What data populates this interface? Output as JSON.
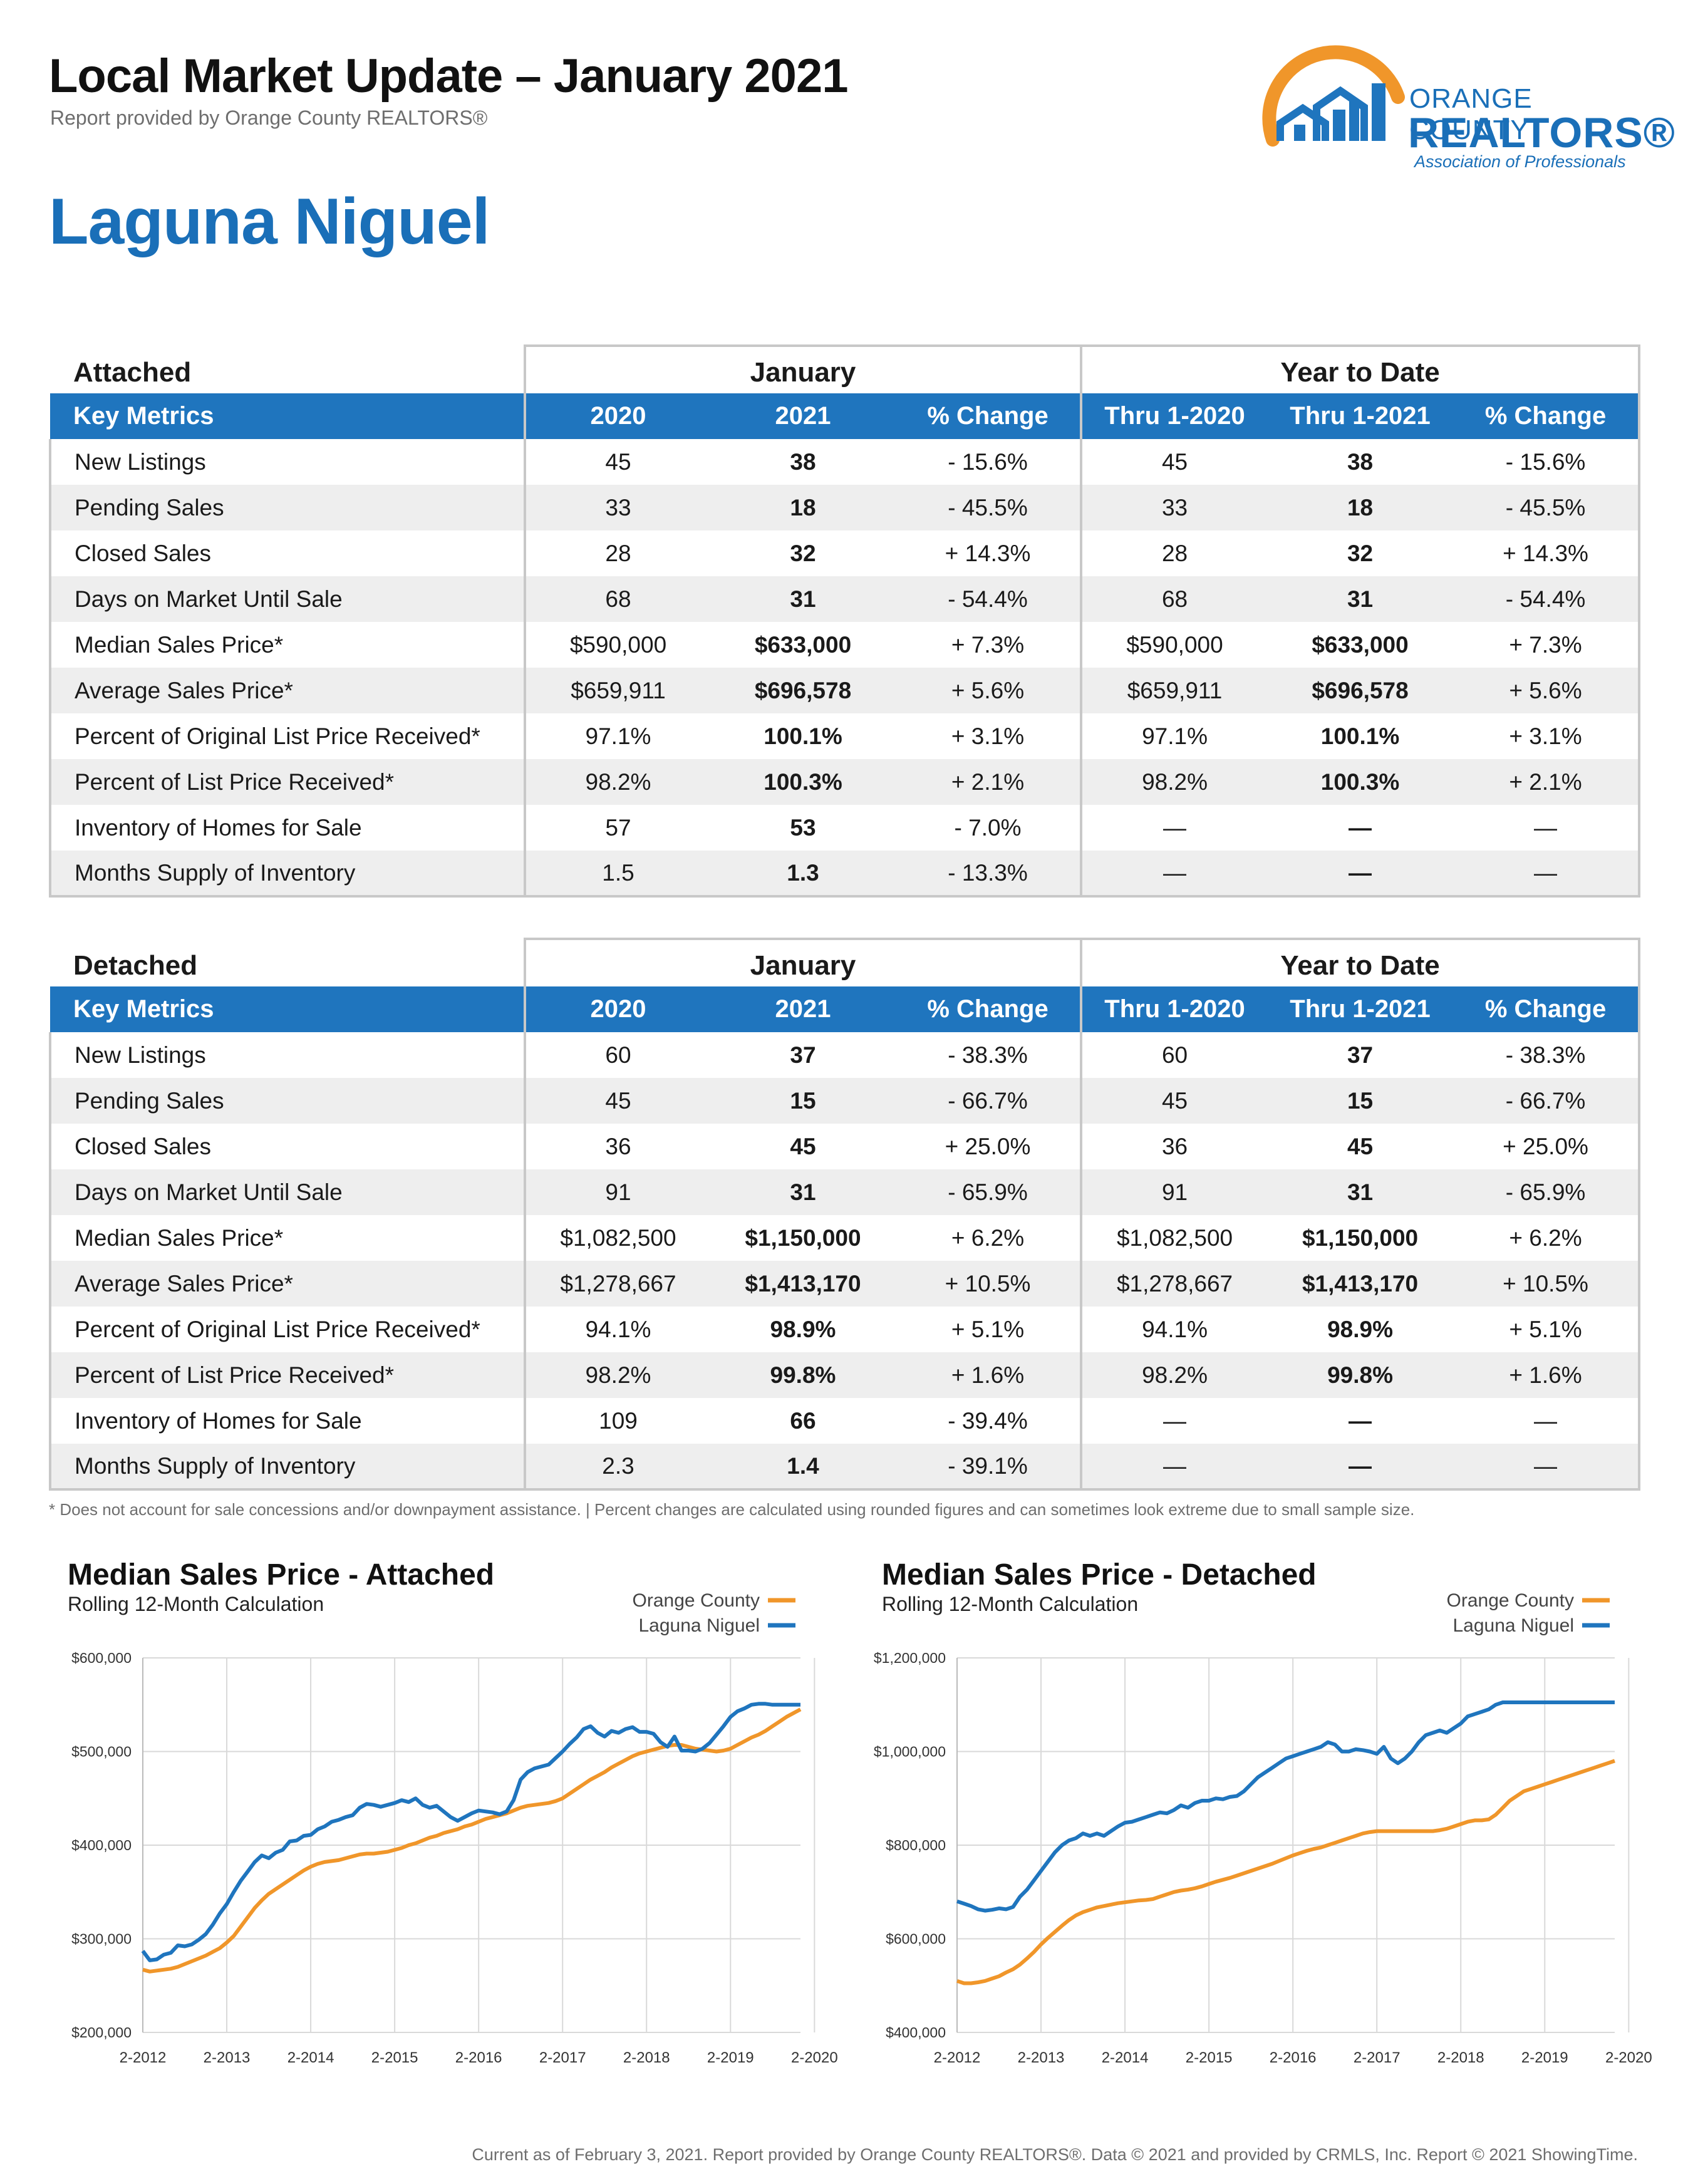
{
  "header": {
    "title": "Local Market Update – January 2021",
    "subtitle": "Report provided by Orange County REALTORS®",
    "area": "Laguna Niguel"
  },
  "logo": {
    "line1": "ORANGE COUNTY",
    "line2": "REALTORS®",
    "line3": "Association of Professionals"
  },
  "columns": {
    "group_january": "January",
    "group_ytd": "Year to Date",
    "key_metrics": "Key Metrics",
    "c2020": "2020",
    "c2021": "2021",
    "pct": "% Change",
    "thru2020": "Thru 1-2020",
    "thru2021": "Thru 1-2021",
    "pct_ytd": "% Change"
  },
  "tables": [
    {
      "type": "Attached",
      "rows": [
        [
          "New Listings",
          "45",
          "38",
          "- 15.6%",
          "45",
          "38",
          "- 15.6%"
        ],
        [
          "Pending Sales",
          "33",
          "18",
          "- 45.5%",
          "33",
          "18",
          "- 45.5%"
        ],
        [
          "Closed Sales",
          "28",
          "32",
          "+ 14.3%",
          "28",
          "32",
          "+ 14.3%"
        ],
        [
          "Days on Market Until Sale",
          "68",
          "31",
          "- 54.4%",
          "68",
          "31",
          "- 54.4%"
        ],
        [
          "Median Sales Price*",
          "$590,000",
          "$633,000",
          "+ 7.3%",
          "$590,000",
          "$633,000",
          "+ 7.3%"
        ],
        [
          "Average Sales Price*",
          "$659,911",
          "$696,578",
          "+ 5.6%",
          "$659,911",
          "$696,578",
          "+ 5.6%"
        ],
        [
          "Percent of Original List Price Received*",
          "97.1%",
          "100.1%",
          "+ 3.1%",
          "97.1%",
          "100.1%",
          "+ 3.1%"
        ],
        [
          "Percent of List Price Received*",
          "98.2%",
          "100.3%",
          "+ 2.1%",
          "98.2%",
          "100.3%",
          "+ 2.1%"
        ],
        [
          "Inventory of Homes for Sale",
          "57",
          "53",
          "- 7.0%",
          "—",
          "—",
          "—"
        ],
        [
          "Months Supply of Inventory",
          "1.5",
          "1.3",
          "- 13.3%",
          "—",
          "—",
          "—"
        ]
      ]
    },
    {
      "type": "Detached",
      "rows": [
        [
          "New Listings",
          "60",
          "37",
          "- 38.3%",
          "60",
          "37",
          "- 38.3%"
        ],
        [
          "Pending Sales",
          "45",
          "15",
          "- 66.7%",
          "45",
          "15",
          "- 66.7%"
        ],
        [
          "Closed Sales",
          "36",
          "45",
          "+ 25.0%",
          "36",
          "45",
          "+ 25.0%"
        ],
        [
          "Days on Market Until Sale",
          "91",
          "31",
          "- 65.9%",
          "91",
          "31",
          "- 65.9%"
        ],
        [
          "Median Sales Price*",
          "$1,082,500",
          "$1,150,000",
          "+ 6.2%",
          "$1,082,500",
          "$1,150,000",
          "+ 6.2%"
        ],
        [
          "Average Sales Price*",
          "$1,278,667",
          "$1,413,170",
          "+ 10.5%",
          "$1,278,667",
          "$1,413,170",
          "+ 10.5%"
        ],
        [
          "Percent of Original List Price Received*",
          "94.1%",
          "98.9%",
          "+ 5.1%",
          "94.1%",
          "98.9%",
          "+ 5.1%"
        ],
        [
          "Percent of List Price Received*",
          "98.2%",
          "99.8%",
          "+ 1.6%",
          "98.2%",
          "99.8%",
          "+ 1.6%"
        ],
        [
          "Inventory of Homes for Sale",
          "109",
          "66",
          "- 39.4%",
          "—",
          "—",
          "—"
        ],
        [
          "Months Supply of Inventory",
          "2.3",
          "1.4",
          "- 39.1%",
          "—",
          "—",
          "—"
        ]
      ]
    }
  ],
  "footnote": "* Does not account for sale concessions and/or downpayment assistance.  |  Percent changes are calculated using rounded figures and can sometimes look extreme due to small sample size.",
  "footer": "Current as of February 3, 2021. Report provided by Orange County REALTORS®. Data © 2021 and provided by CRMLS, Inc. Report © 2021 ShowingTime.",
  "colors": {
    "brand_blue": "#1f75be",
    "orange": "#f0962a",
    "grid": "#d9d9d9"
  },
  "chart_data": [
    {
      "type": "line",
      "title": "Median Sales Price - Attached",
      "subtitle": "Rolling 12-Month Calculation",
      "xlabels": [
        "2-2012",
        "2-2013",
        "2-2014",
        "2-2015",
        "2-2016",
        "2-2017",
        "2-2018",
        "2-2019",
        "2-2020"
      ],
      "x_start_year": 2012,
      "ylim": [
        200000,
        600000
      ],
      "yticks": [
        "$200,000",
        "$300,000",
        "$400,000",
        "$500,000",
        "$600,000"
      ],
      "legend": "top-right",
      "series": [
        {
          "name": "Orange County",
          "color": "#f0962a",
          "values": [
            267000,
            265000,
            266000,
            267000,
            268000,
            270000,
            273000,
            276000,
            279000,
            282000,
            286000,
            290000,
            296000,
            303000,
            313000,
            323000,
            333000,
            341000,
            348000,
            353000,
            358000,
            363000,
            368000,
            373000,
            377000,
            380000,
            382000,
            383000,
            384000,
            386000,
            388000,
            390000,
            391000,
            391000,
            392000,
            393000,
            395000,
            397000,
            400000,
            402000,
            405000,
            408000,
            410000,
            413000,
            415000,
            417000,
            420000,
            422000,
            425000,
            428000,
            430000,
            432000,
            434000,
            437000,
            440000,
            442000,
            443000,
            444000,
            445000,
            447000,
            450000,
            455000,
            460000,
            465000,
            470000,
            474000,
            478000,
            483000,
            487000,
            491000,
            495000,
            498000,
            500000,
            502000,
            504000,
            506000,
            507000,
            507000,
            505000,
            503000,
            502000,
            501000,
            500000,
            501000,
            503000,
            507000,
            511000,
            515000,
            518000,
            522000,
            527000,
            532000,
            537000,
            541000,
            545000
          ]
        },
        {
          "name": "Laguna Niguel",
          "color": "#1f75be",
          "values": [
            287000,
            277000,
            278000,
            283000,
            285000,
            293000,
            292000,
            294000,
            299000,
            305000,
            315000,
            327000,
            337000,
            350000,
            362000,
            372000,
            382000,
            389000,
            386000,
            392000,
            395000,
            404000,
            405000,
            410000,
            411000,
            417000,
            420000,
            425000,
            427000,
            430000,
            432000,
            440000,
            444000,
            443000,
            441000,
            443000,
            445000,
            448000,
            446000,
            450000,
            443000,
            440000,
            442000,
            436000,
            430000,
            426000,
            430000,
            434000,
            437000,
            436000,
            435000,
            433000,
            436000,
            448000,
            470000,
            478000,
            482000,
            484000,
            486000,
            493000,
            500000,
            508000,
            515000,
            524000,
            527000,
            520000,
            516000,
            522000,
            520000,
            524000,
            526000,
            521000,
            521000,
            519000,
            510000,
            505000,
            516000,
            501000,
            501000,
            500000,
            503000,
            509000,
            518000,
            527000,
            537000,
            543000,
            546000,
            550000,
            551000,
            551000,
            550000,
            550000,
            550000,
            550000,
            550000
          ]
        }
      ]
    },
    {
      "type": "line",
      "title": "Median Sales Price - Detached",
      "subtitle": "Rolling 12-Month Calculation",
      "xlabels": [
        "2-2012",
        "2-2013",
        "2-2014",
        "2-2015",
        "2-2016",
        "2-2017",
        "2-2018",
        "2-2019",
        "2-2020"
      ],
      "x_start_year": 2012,
      "ylim": [
        400000,
        1200000
      ],
      "yticks": [
        "$400,000",
        "$600,000",
        "$800,000",
        "$1,000,000",
        "$1,200,000"
      ],
      "legend": "top-right",
      "series": [
        {
          "name": "Orange County",
          "color": "#f0962a",
          "values": [
            510000,
            505000,
            505000,
            507000,
            510000,
            515000,
            520000,
            528000,
            535000,
            545000,
            558000,
            572000,
            588000,
            602000,
            615000,
            628000,
            640000,
            650000,
            657000,
            662000,
            667000,
            670000,
            673000,
            676000,
            678000,
            680000,
            682000,
            683000,
            685000,
            690000,
            695000,
            700000,
            703000,
            705000,
            708000,
            712000,
            717000,
            722000,
            726000,
            730000,
            735000,
            740000,
            745000,
            750000,
            755000,
            760000,
            766000,
            772000,
            778000,
            783000,
            788000,
            792000,
            795000,
            800000,
            805000,
            810000,
            815000,
            820000,
            825000,
            828000,
            830000,
            830000,
            830000,
            830000,
            830000,
            830000,
            830000,
            830000,
            830000,
            832000,
            835000,
            840000,
            845000,
            850000,
            853000,
            853000,
            855000,
            865000,
            880000,
            895000,
            905000,
            915000,
            920000,
            925000,
            930000,
            935000,
            940000,
            945000,
            950000,
            955000,
            960000,
            965000,
            970000,
            975000,
            980000
          ]
        },
        {
          "name": "Laguna Niguel",
          "color": "#1f75be",
          "values": [
            680000,
            675000,
            670000,
            663000,
            660000,
            662000,
            665000,
            663000,
            668000,
            690000,
            705000,
            725000,
            745000,
            765000,
            785000,
            800000,
            810000,
            815000,
            825000,
            820000,
            825000,
            820000,
            830000,
            840000,
            848000,
            850000,
            855000,
            860000,
            865000,
            870000,
            868000,
            875000,
            885000,
            880000,
            890000,
            895000,
            895000,
            900000,
            898000,
            903000,
            905000,
            915000,
            930000,
            945000,
            955000,
            965000,
            975000,
            985000,
            990000,
            995000,
            1000000,
            1005000,
            1010000,
            1020000,
            1015000,
            1000000,
            1000000,
            1005000,
            1003000,
            1000000,
            995000,
            1010000,
            985000,
            975000,
            985000,
            1000000,
            1020000,
            1035000,
            1040000,
            1045000,
            1040000,
            1050000,
            1060000,
            1075000,
            1080000,
            1085000,
            1090000,
            1100000,
            1105000,
            1105000,
            1105000,
            1105000,
            1105000,
            1105000,
            1105000,
            1105000,
            1105000,
            1105000,
            1105000,
            1105000,
            1105000,
            1105000,
            1105000,
            1105000,
            1105000
          ]
        }
      ]
    }
  ]
}
